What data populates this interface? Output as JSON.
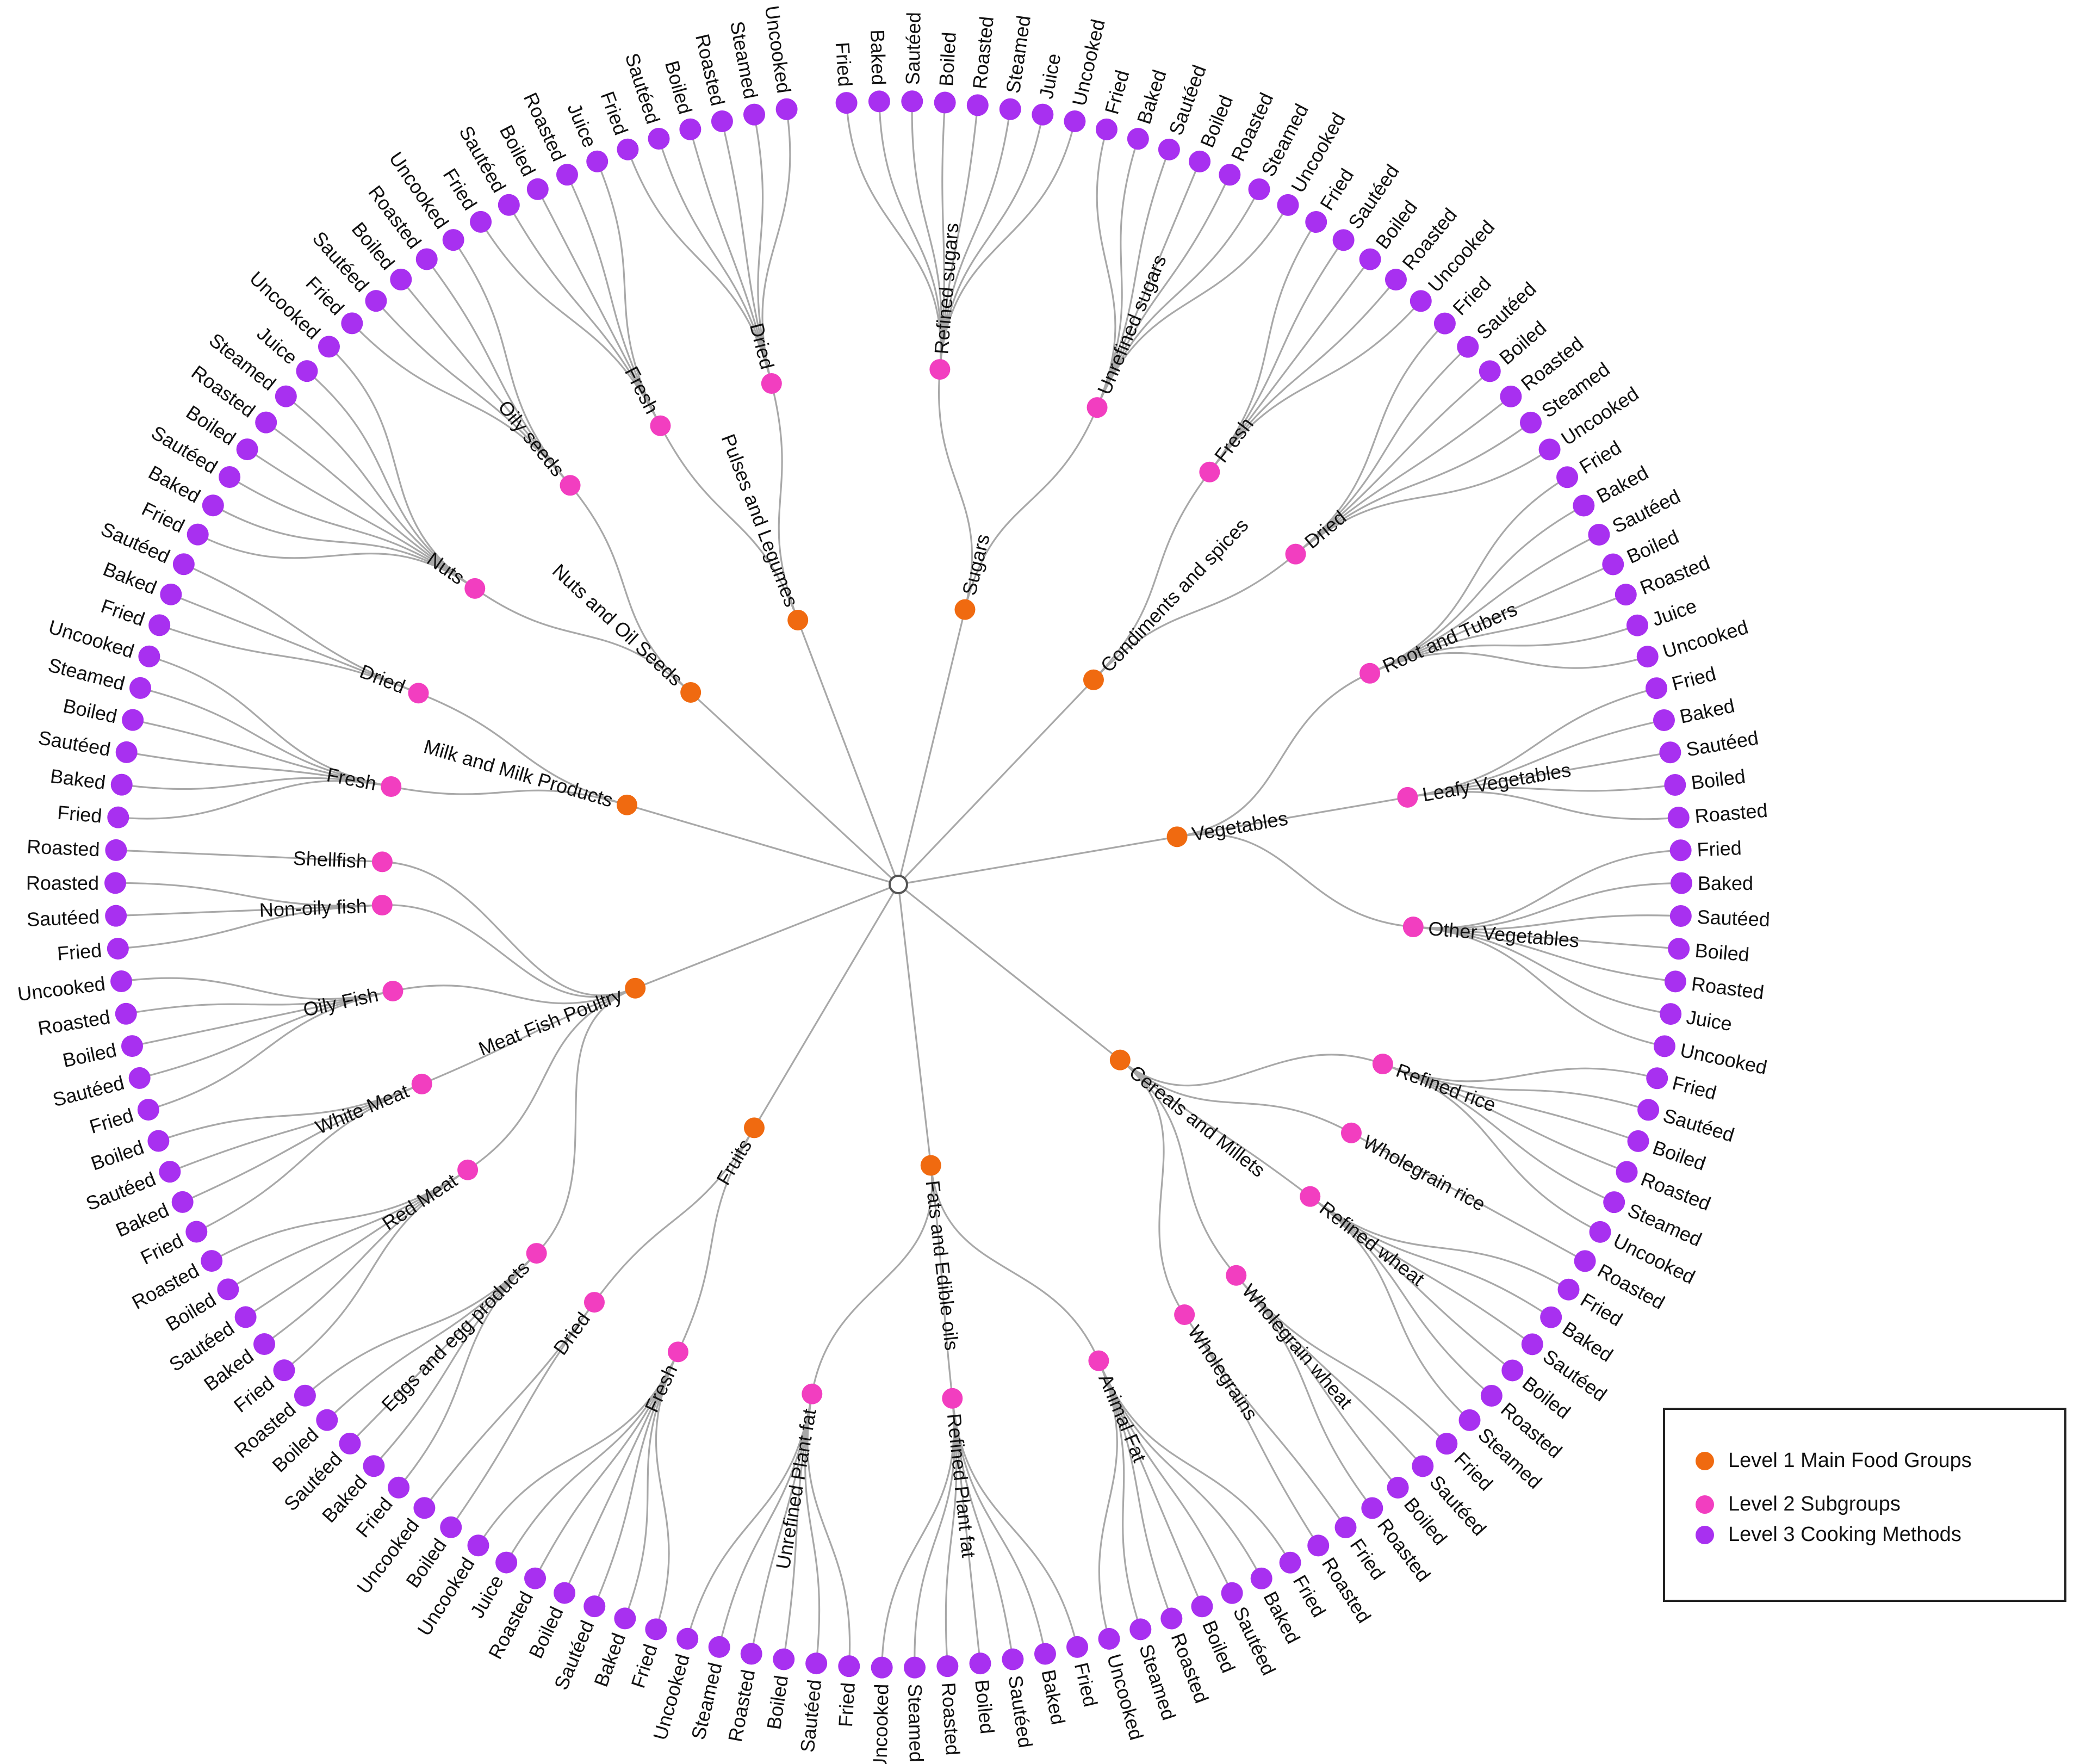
{
  "colors": {
    "level1": "#f06a10",
    "level2": "#f23ec0",
    "level3": "#a830f0",
    "link": "#a8a8a8",
    "root": "#ffffff"
  },
  "legend": {
    "title": "",
    "items": [
      {
        "label": "Level 1 Main Food Groups",
        "color": "#f06a10"
      },
      {
        "label": "Level 2 Subgroups",
        "color": "#f23ec0"
      },
      {
        "label": "Level 3 Cooking Methods",
        "color": "#a830f0"
      }
    ]
  },
  "tree": [
    {
      "name": "Sugars",
      "children": [
        {
          "name": "Refined sugars",
          "children": [
            "Fried",
            "Baked",
            "Sautéed",
            "Boiled",
            "Roasted",
            "Steamed",
            "Juice",
            "Uncooked"
          ]
        },
        {
          "name": "Unrefined sugars",
          "children": [
            "Fried",
            "Baked",
            "Sautéed",
            "Boiled",
            "Roasted",
            "Steamed",
            "Uncooked"
          ]
        }
      ]
    },
    {
      "name": "Condiments and spices",
      "children": [
        {
          "name": "Fresh",
          "children": [
            "Fried",
            "Sautéed",
            "Boiled",
            "Roasted",
            "Uncooked"
          ]
        },
        {
          "name": "Dried",
          "children": [
            "Fried",
            "Sautéed",
            "Boiled",
            "Roasted",
            "Steamed",
            "Uncooked"
          ]
        }
      ]
    },
    {
      "name": "Vegetables",
      "children": [
        {
          "name": "Root and Tubers",
          "children": [
            "Fried",
            "Baked",
            "Sautéed",
            "Boiled",
            "Roasted",
            "Juice",
            "Uncooked"
          ]
        },
        {
          "name": "Leafy Vegetables",
          "children": [
            "Fried",
            "Baked",
            "Sautéed",
            "Boiled",
            "Roasted"
          ]
        },
        {
          "name": "Other Vegetables",
          "children": [
            "Fried",
            "Baked",
            "Sautéed",
            "Boiled",
            "Roasted",
            "Juice",
            "Uncooked"
          ]
        }
      ]
    },
    {
      "name": "Cereals and Millets",
      "children": [
        {
          "name": "Refined rice",
          "children": [
            "Fried",
            "Sautéed",
            "Boiled",
            "Roasted",
            "Steamed",
            "Uncooked"
          ]
        },
        {
          "name": "Wholegrain rice",
          "children": [
            "Roasted"
          ]
        },
        {
          "name": "Refined wheat",
          "children": [
            "Fried",
            "Baked",
            "Sautéed",
            "Boiled",
            "Roasted",
            "Steamed"
          ]
        },
        {
          "name": "Wholegrain wheat",
          "children": [
            "Fried",
            "Sautéed",
            "Boiled",
            "Roasted"
          ]
        },
        {
          "name": "Wholegrains",
          "children": [
            "Fried",
            "Roasted"
          ]
        }
      ]
    },
    {
      "name": "Fats and Edible oils",
      "children": [
        {
          "name": "Animal Fat",
          "children": [
            "Fried",
            "Baked",
            "Sautéed",
            "Boiled",
            "Roasted",
            "Steamed",
            "Uncooked"
          ]
        },
        {
          "name": "Refined Plant fat",
          "children": [
            "Fried",
            "Baked",
            "Sautéed",
            "Boiled",
            "Roasted",
            "Steamed",
            "Uncooked"
          ]
        },
        {
          "name": "Unrefined Plant fat",
          "children": [
            "Fried",
            "Sautéed",
            "Boiled",
            "Roasted",
            "Steamed",
            "Uncooked"
          ]
        }
      ]
    },
    {
      "name": "Fruits",
      "children": [
        {
          "name": "Fresh",
          "children": [
            "Fried",
            "Baked",
            "Sautéed",
            "Boiled",
            "Roasted",
            "Juice",
            "Uncooked"
          ]
        },
        {
          "name": "Dried",
          "children": [
            "Boiled",
            "Uncooked"
          ]
        }
      ]
    },
    {
      "name": "Meat Fish Poultry",
      "children": [
        {
          "name": "Eggs and egg products",
          "children": [
            "Fried",
            "Baked",
            "Sautéed",
            "Boiled",
            "Roasted"
          ]
        },
        {
          "name": "Red Meat",
          "children": [
            "Fried",
            "Baked",
            "Sautéed",
            "Boiled",
            "Roasted"
          ]
        },
        {
          "name": "White Meat",
          "children": [
            "Fried",
            "Baked",
            "Sautéed",
            "Boiled"
          ]
        },
        {
          "name": "Oily Fish",
          "children": [
            "Fried",
            "Sautéed",
            "Boiled",
            "Roasted",
            "Uncooked"
          ]
        },
        {
          "name": "Non-oily fish",
          "children": [
            "Fried",
            "Sautéed",
            "Roasted"
          ]
        },
        {
          "name": "Shellfish",
          "children": [
            "Roasted"
          ]
        }
      ]
    },
    {
      "name": "Milk and Milk Products",
      "children": [
        {
          "name": "Fresh",
          "children": [
            "Fried",
            "Baked",
            "Sautéed",
            "Boiled",
            "Steamed",
            "Uncooked"
          ]
        },
        {
          "name": "Dried",
          "children": [
            "Fried",
            "Baked",
            "Sautéed"
          ]
        }
      ]
    },
    {
      "name": "Nuts and Oil Seeds",
      "children": [
        {
          "name": "Nuts",
          "children": [
            "Fried",
            "Baked",
            "Sautéed",
            "Boiled",
            "Roasted",
            "Steamed",
            "Juice",
            "Uncooked"
          ]
        },
        {
          "name": "Oily seeds",
          "children": [
            "Fried",
            "Sautéed",
            "Boiled",
            "Roasted",
            "Uncooked"
          ]
        }
      ]
    },
    {
      "name": "Pulses and Legumes",
      "children": [
        {
          "name": "Fresh",
          "children": [
            "Fried",
            "Sautéed",
            "Boiled",
            "Roasted",
            "Juice"
          ]
        },
        {
          "name": "Dried",
          "children": [
            "Fried",
            "Sautéed",
            "Boiled",
            "Roasted",
            "Steamed",
            "Uncooked"
          ]
        }
      ]
    }
  ]
}
